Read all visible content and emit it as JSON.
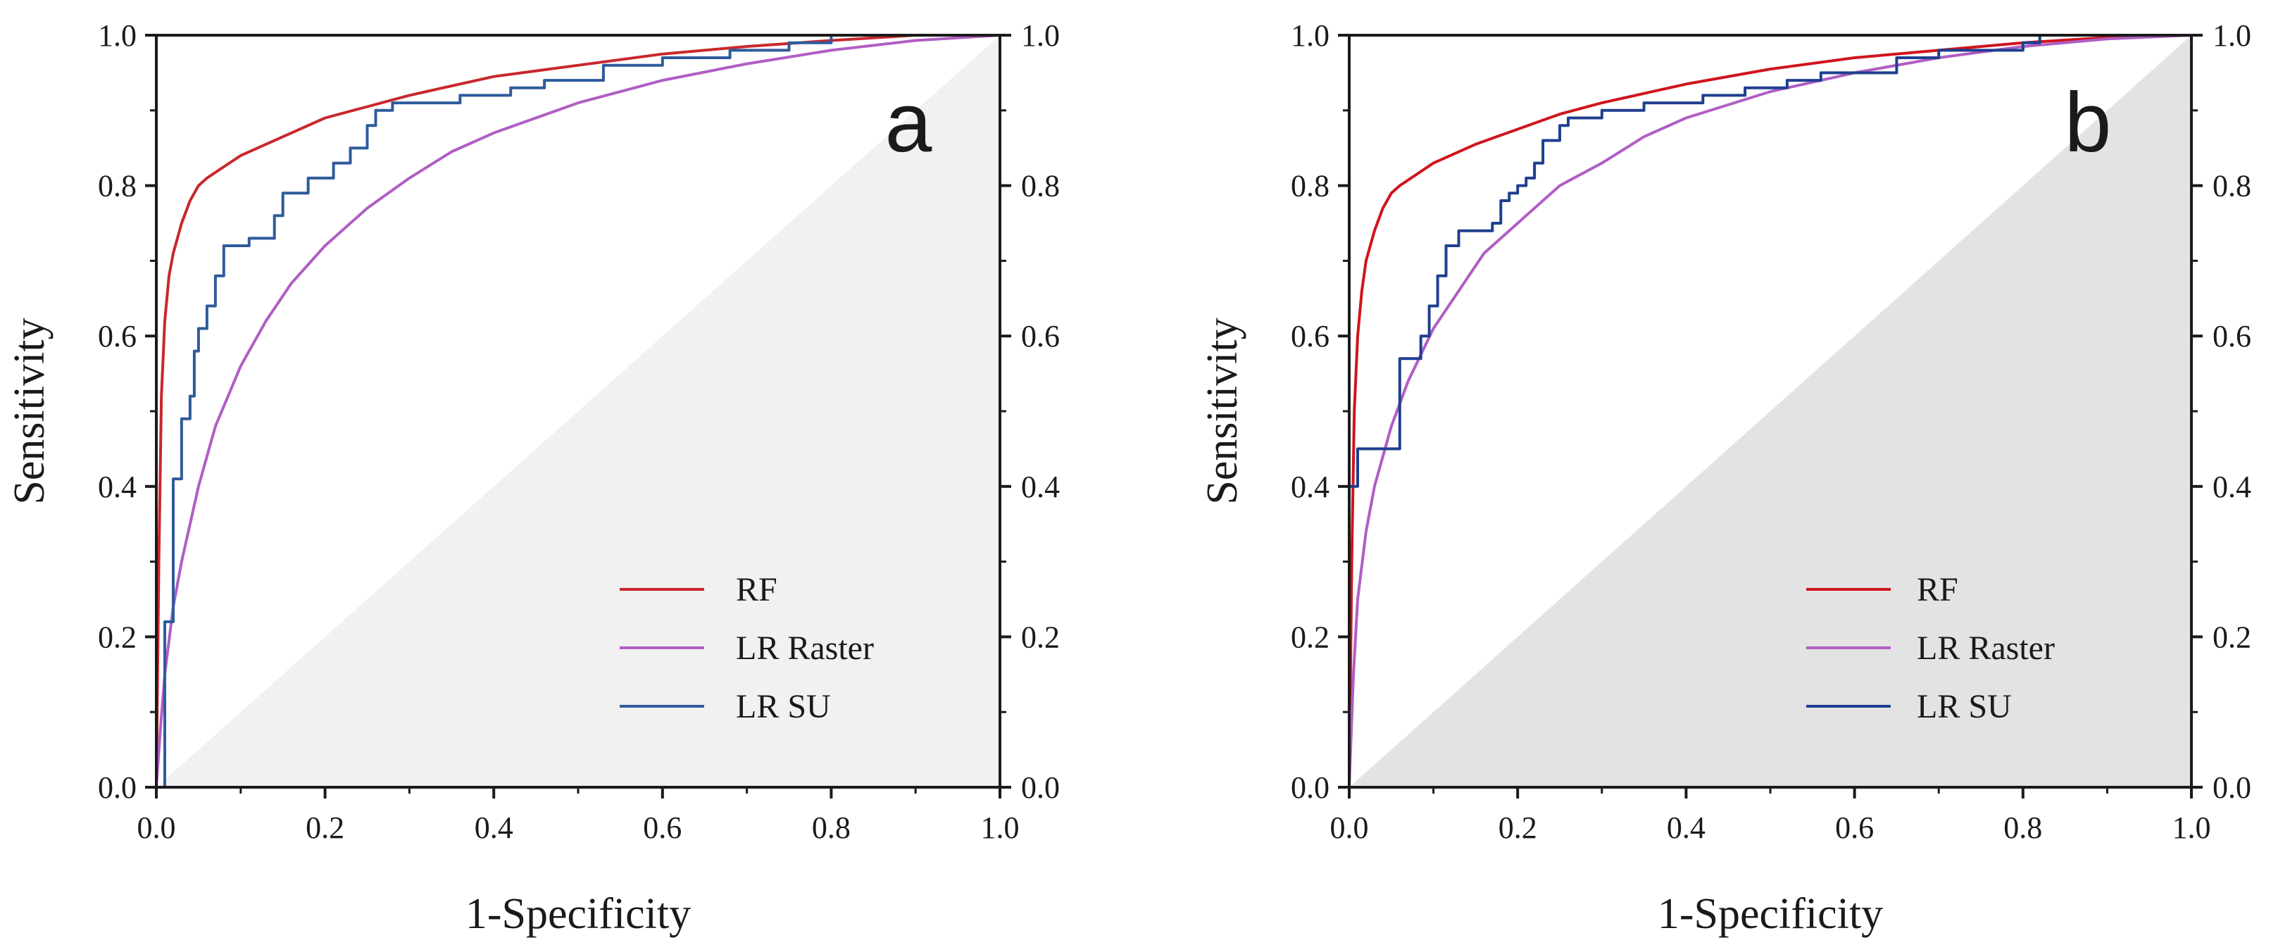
{
  "chart_data": [
    {
      "type": "line",
      "panel_label": "a",
      "xlabel": "1-Specificity",
      "ylabel": "Sensitivity",
      "xlim": [
        0,
        1
      ],
      "ylim": [
        0,
        1
      ],
      "xticks": [
        "0.0",
        "0.2",
        "0.4",
        "0.6",
        "0.8",
        "1.0"
      ],
      "yticks": [
        "0.0",
        "0.2",
        "0.4",
        "0.6",
        "0.8",
        "1.0"
      ],
      "right_yticks": [
        "0.0",
        "0.2",
        "0.4",
        "0.6",
        "0.8",
        "1.0"
      ],
      "grid": false,
      "legend_position": "bottom-right",
      "shade_below_diagonal": "#f1f1f1",
      "series": [
        {
          "name": "RF",
          "color": "#c8282d",
          "step": false,
          "x": [
            0,
            0.003,
            0.006,
            0.01,
            0.015,
            0.02,
            0.03,
            0.04,
            0.05,
            0.06,
            0.08,
            0.1,
            0.12,
            0.15,
            0.2,
            0.25,
            0.3,
            0.4,
            0.5,
            0.6,
            0.7,
            0.8,
            0.9,
            1.0
          ],
          "y": [
            0,
            0.3,
            0.52,
            0.62,
            0.68,
            0.71,
            0.75,
            0.78,
            0.8,
            0.81,
            0.825,
            0.84,
            0.85,
            0.865,
            0.89,
            0.905,
            0.92,
            0.945,
            0.96,
            0.975,
            0.985,
            0.993,
            1.0,
            1.0
          ]
        },
        {
          "name": "LR Raster",
          "color": "#b05ec4",
          "step": false,
          "x": [
            0,
            0.005,
            0.01,
            0.02,
            0.03,
            0.05,
            0.07,
            0.1,
            0.13,
            0.16,
            0.2,
            0.25,
            0.3,
            0.35,
            0.4,
            0.5,
            0.6,
            0.7,
            0.8,
            0.9,
            1.0
          ],
          "y": [
            0,
            0.08,
            0.15,
            0.24,
            0.3,
            0.4,
            0.48,
            0.56,
            0.62,
            0.67,
            0.72,
            0.77,
            0.81,
            0.845,
            0.87,
            0.91,
            0.94,
            0.962,
            0.98,
            0.993,
            1.0
          ]
        },
        {
          "name": "LR SU",
          "color": "#2f5b9c",
          "step": true,
          "x": [
            0,
            0.01,
            0.01,
            0.02,
            0.02,
            0.03,
            0.03,
            0.04,
            0.04,
            0.045,
            0.045,
            0.05,
            0.05,
            0.06,
            0.06,
            0.07,
            0.07,
            0.08,
            0.08,
            0.11,
            0.11,
            0.14,
            0.14,
            0.15,
            0.15,
            0.18,
            0.18,
            0.21,
            0.21,
            0.23,
            0.23,
            0.25,
            0.25,
            0.26,
            0.26,
            0.28,
            0.28,
            0.36,
            0.36,
            0.42,
            0.42,
            0.46,
            0.46,
            0.53,
            0.53,
            0.6,
            0.6,
            0.68,
            0.68,
            0.75,
            0.75,
            0.8,
            0.8,
            0.85,
            0.85,
            1.0
          ],
          "y": [
            0,
            0,
            0.22,
            0.22,
            0.41,
            0.41,
            0.49,
            0.49,
            0.52,
            0.52,
            0.58,
            0.58,
            0.61,
            0.61,
            0.64,
            0.64,
            0.68,
            0.68,
            0.72,
            0.72,
            0.73,
            0.73,
            0.76,
            0.76,
            0.79,
            0.79,
            0.81,
            0.81,
            0.83,
            0.83,
            0.85,
            0.85,
            0.88,
            0.88,
            0.9,
            0.9,
            0.91,
            0.91,
            0.92,
            0.92,
            0.93,
            0.93,
            0.94,
            0.94,
            0.96,
            0.96,
            0.97,
            0.97,
            0.98,
            0.98,
            0.99,
            0.99,
            1.0,
            1.0,
            1.0,
            1.0
          ]
        }
      ]
    },
    {
      "type": "line",
      "panel_label": "b",
      "xlabel": "1-Specificity",
      "ylabel": "Sensitivity",
      "xlim": [
        0,
        1
      ],
      "ylim": [
        0,
        1
      ],
      "xticks": [
        "0.0",
        "0.2",
        "0.4",
        "0.6",
        "0.8",
        "1.0"
      ],
      "yticks": [
        "0.0",
        "0.2",
        "0.4",
        "0.6",
        "0.8",
        "1.0"
      ],
      "right_yticks": [
        "0.0",
        "0.2",
        "0.4",
        "0.6",
        "0.8",
        "1.0"
      ],
      "grid": false,
      "legend_position": "bottom-right",
      "shade_below_diagonal": "#e3e3e3",
      "series": [
        {
          "name": "RF",
          "color": "#d0141c",
          "step": false,
          "x": [
            0,
            0.003,
            0.006,
            0.01,
            0.015,
            0.02,
            0.03,
            0.04,
            0.05,
            0.06,
            0.08,
            0.1,
            0.12,
            0.15,
            0.2,
            0.25,
            0.3,
            0.4,
            0.5,
            0.6,
            0.7,
            0.8,
            0.9,
            1.0
          ],
          "y": [
            0,
            0.3,
            0.5,
            0.6,
            0.66,
            0.7,
            0.74,
            0.77,
            0.79,
            0.8,
            0.815,
            0.83,
            0.84,
            0.855,
            0.875,
            0.895,
            0.91,
            0.935,
            0.955,
            0.97,
            0.98,
            0.99,
            0.997,
            1.0
          ]
        },
        {
          "name": "LR Raster",
          "color": "#b05ec4",
          "step": false,
          "x": [
            0,
            0.005,
            0.01,
            0.02,
            0.03,
            0.05,
            0.07,
            0.1,
            0.13,
            0.16,
            0.2,
            0.25,
            0.3,
            0.35,
            0.4,
            0.5,
            0.6,
            0.7,
            0.8,
            0.9,
            1.0
          ],
          "y": [
            0,
            0.15,
            0.25,
            0.34,
            0.4,
            0.48,
            0.54,
            0.61,
            0.66,
            0.71,
            0.75,
            0.8,
            0.83,
            0.865,
            0.89,
            0.925,
            0.95,
            0.97,
            0.985,
            0.995,
            1.0
          ]
        },
        {
          "name": "LR SU",
          "color": "#1f3f8f",
          "step": true,
          "x": [
            0,
            0,
            0.01,
            0.01,
            0.06,
            0.06,
            0.085,
            0.085,
            0.095,
            0.095,
            0.105,
            0.105,
            0.115,
            0.115,
            0.13,
            0.13,
            0.17,
            0.17,
            0.18,
            0.18,
            0.19,
            0.19,
            0.2,
            0.2,
            0.21,
            0.21,
            0.22,
            0.22,
            0.23,
            0.23,
            0.25,
            0.25,
            0.26,
            0.26,
            0.3,
            0.3,
            0.35,
            0.35,
            0.42,
            0.42,
            0.47,
            0.47,
            0.52,
            0.52,
            0.56,
            0.56,
            0.65,
            0.65,
            0.7,
            0.7,
            0.8,
            0.8,
            0.82,
            0.82,
            1.0
          ],
          "y": [
            0,
            0.4,
            0.4,
            0.45,
            0.45,
            0.57,
            0.57,
            0.6,
            0.6,
            0.64,
            0.64,
            0.68,
            0.68,
            0.72,
            0.72,
            0.74,
            0.74,
            0.75,
            0.75,
            0.78,
            0.78,
            0.79,
            0.79,
            0.8,
            0.8,
            0.81,
            0.81,
            0.83,
            0.83,
            0.86,
            0.86,
            0.88,
            0.88,
            0.89,
            0.89,
            0.9,
            0.9,
            0.91,
            0.91,
            0.92,
            0.92,
            0.93,
            0.93,
            0.94,
            0.94,
            0.95,
            0.95,
            0.97,
            0.97,
            0.98,
            0.98,
            0.99,
            0.99,
            1.0,
            1.0
          ]
        }
      ]
    }
  ]
}
